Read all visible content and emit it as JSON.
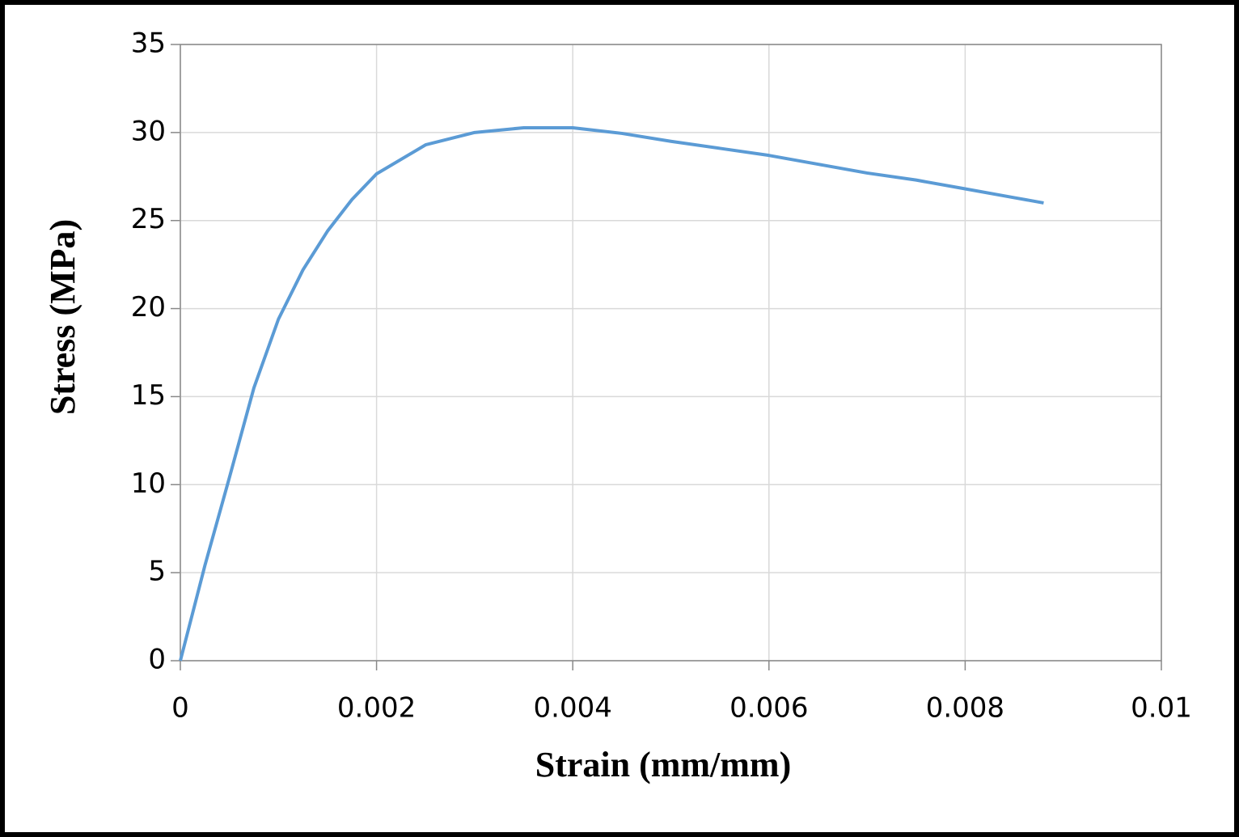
{
  "chart_data": {
    "type": "line",
    "x_label": "Strain (mm/mm)",
    "y_label": "Stress (MPa)",
    "x": [
      0,
      0.00025,
      0.0005,
      0.00075,
      0.001,
      0.00125,
      0.0015,
      0.00175,
      0.002,
      0.0025,
      0.003,
      0.0035,
      0.004,
      0.0045,
      0.005,
      0.0055,
      0.006,
      0.0065,
      0.007,
      0.0075,
      0.008,
      0.0085,
      0.0088
    ],
    "series": [
      {
        "color": "#5b9bd5",
        "values": [
          0,
          5.4,
          10.4,
          15.5,
          19.4,
          22.2,
          24.4,
          26.2,
          27.65,
          29.3,
          30.0,
          30.27,
          30.27,
          29.95,
          29.5,
          29.1,
          28.7,
          28.2,
          27.7,
          27.3,
          26.8,
          26.3,
          26.0
        ]
      }
    ],
    "xlim": [
      0,
      0.01
    ],
    "xticks": [
      0,
      0.002,
      0.004,
      0.006,
      0.008,
      0.01
    ],
    "ylim": [
      0,
      35
    ],
    "yticks": [
      0,
      5,
      10,
      15,
      20,
      25,
      30,
      35
    ],
    "grid": true
  }
}
